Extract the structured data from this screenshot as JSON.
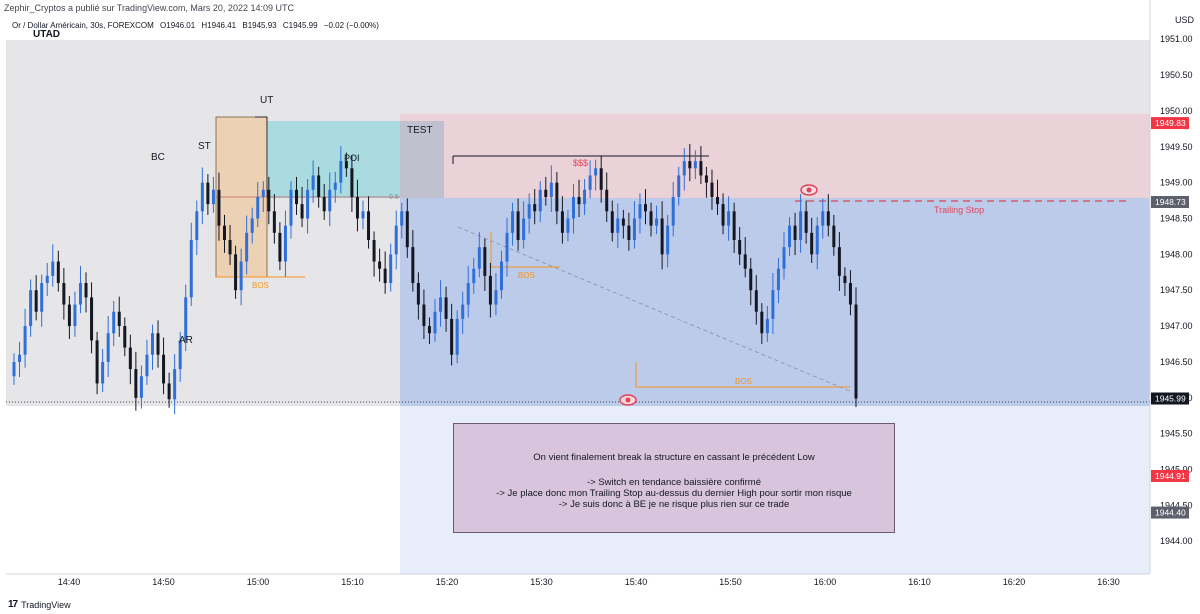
{
  "header": {
    "publisher_line": "Zephir_Cryptos a publié sur TradingView.com, Mars 20, 2022 14:09 UTC",
    "symbol": "Or / Dollar Américain, 30s, FOREXCOM",
    "open": "O1946.01",
    "high": "H1946.41",
    "low": "B1945.93",
    "close": "C1945.99",
    "change": "−0.02 (−0.00%)",
    "currency": "USD"
  },
  "footer": {
    "logo": "17",
    "brand": "TradingView"
  },
  "note": {
    "line1": "On vient finalement break la structure en cassant le précédent Low",
    "line2": "-> Switch en tendance baissière confirmé",
    "line3": "-> Je place donc mon Trailing Stop au-dessus du dernier High pour sortir mon risque",
    "line4": "-> Je suis donc à BE je ne risque plus rien sur ce trade"
  },
  "chart_data": {
    "type": "candlestick",
    "y_ticks": [
      "1951.00",
      "1950.50",
      "1950.00",
      "1949.50",
      "1949.00",
      "1948.50",
      "1948.00",
      "1947.50",
      "1947.00",
      "1946.50",
      "1946.00",
      "1945.50",
      "1945.00",
      "1944.50",
      "1944.00"
    ],
    "x_ticks": [
      "14:40",
      "14:50",
      "15:00",
      "15:10",
      "15:20",
      "15:30",
      "15:40",
      "15:50",
      "16:00",
      "16:10",
      "16:20",
      "16:30"
    ],
    "ylim": [
      1943.85,
      1951.1
    ],
    "price_badges": [
      {
        "label": "1949.83",
        "value": 1949.83,
        "color": "#f23645"
      },
      {
        "label": "1948.73",
        "value": 1948.73,
        "color": "#5d606b"
      },
      {
        "label": "1945.99",
        "value": 1945.99,
        "color": "#131722"
      },
      {
        "label": "1944.91",
        "value": 1944.91,
        "color": "#f23645"
      },
      {
        "label": "1944.40",
        "value": 1944.4,
        "color": "#5d606b"
      }
    ],
    "annotations": {
      "utad": "UTAD",
      "bc": "BC",
      "st": "ST",
      "ut": "UT",
      "ar": "AR",
      "poi": "POI",
      "test": "TEST",
      "sss": "$$$",
      "bos": "BOS",
      "trailing_stop": "Trailing Stop",
      "fib": "0.5"
    },
    "levels": {
      "range_top": 1949.83,
      "range_mid": 1948.73,
      "range_bottom": 1945.95,
      "sss": 1949.27,
      "bos1": 1947.65,
      "bos2": 1947.88,
      "bos3": 1946.13,
      "trailing_stop": 1948.7,
      "poi_low": 1948.73
    },
    "candle_closes": [
      1946.5,
      1946.6,
      1947.0,
      1947.5,
      1947.2,
      1947.6,
      1947.7,
      1947.9,
      1947.6,
      1947.3,
      1947.0,
      1947.3,
      1947.6,
      1947.4,
      1946.8,
      1946.2,
      1946.5,
      1946.9,
      1947.2,
      1947.0,
      1946.7,
      1946.4,
      1946.0,
      1946.3,
      1946.6,
      1946.9,
      1946.6,
      1946.2,
      1945.98,
      1946.4,
      1946.8,
      1947.4,
      1948.2,
      1948.6,
      1949.0,
      1948.7,
      1948.9,
      1948.4,
      1948.2,
      1948.0,
      1947.5,
      1947.9,
      1948.3,
      1948.5,
      1948.8,
      1948.9,
      1948.6,
      1948.3,
      1947.9,
      1948.4,
      1948.9,
      1948.7,
      1948.5,
      1948.9,
      1949.1,
      1948.8,
      1948.6,
      1948.9,
      1949.0,
      1949.3,
      1949.2,
      1948.8,
      1948.5,
      1948.6,
      1948.2,
      1947.9,
      1947.8,
      1947.6,
      1948.0,
      1948.4,
      1948.6,
      1948.1,
      1947.6,
      1947.3,
      1947.0,
      1946.9,
      1947.2,
      1947.4,
      1947.1,
      1946.6,
      1947.1,
      1947.3,
      1947.6,
      1947.8,
      1948.1,
      1947.7,
      1947.3,
      1947.5,
      1947.9,
      1948.3,
      1948.6,
      1948.2,
      1948.5,
      1948.7,
      1948.6,
      1948.9,
      1948.8,
      1949.0,
      1948.6,
      1948.3,
      1948.5,
      1948.8,
      1948.7,
      1948.9,
      1949.1,
      1949.2,
      1948.9,
      1948.6,
      1948.3,
      1948.5,
      1948.4,
      1948.2,
      1948.5,
      1948.7,
      1948.6,
      1948.4,
      1948.5,
      1948.0,
      1948.4,
      1948.8,
      1949.1,
      1949.3,
      1949.2,
      1949.3,
      1949.1,
      1949.0,
      1948.8,
      1948.7,
      1948.4,
      1948.6,
      1948.2,
      1948.0,
      1947.8,
      1947.5,
      1947.2,
      1946.9,
      1947.1,
      1947.5,
      1947.8,
      1948.1,
      1948.4,
      1948.2,
      1948.6,
      1948.3,
      1948.0,
      1948.4,
      1948.6,
      1948.4,
      1948.1,
      1947.7,
      1947.6,
      1947.3,
      1945.99
    ]
  }
}
